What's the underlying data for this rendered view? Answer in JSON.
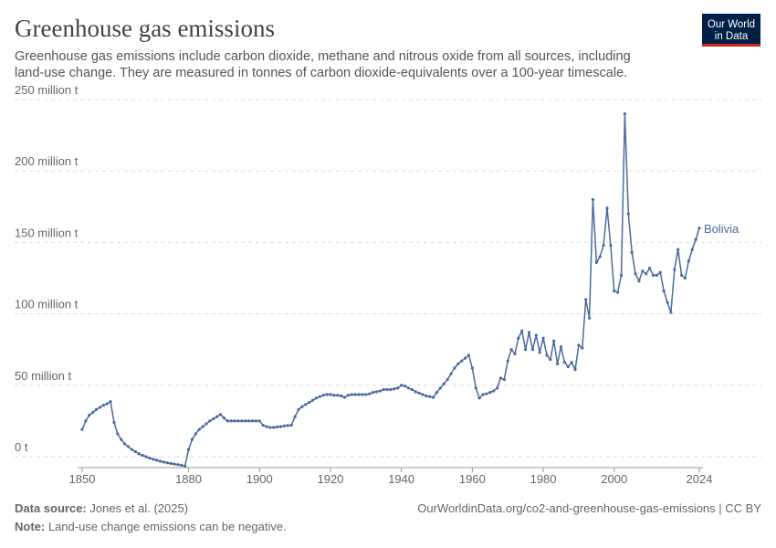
{
  "logo": [
    "Our World",
    "in Data"
  ],
  "chart_data": {
    "type": "line",
    "title": "Greenhouse gas emissions",
    "subtitle": [
      "Greenhouse gas emissions include carbon dioxide, methane and nitrous oxide from all sources, including",
      "land-use change. They are measured in tonnes of carbon dioxide-equivalents over a 100-year timescale."
    ],
    "x": [
      1850,
      1851,
      1852,
      1853,
      1854,
      1855,
      1856,
      1857,
      1858,
      1859,
      1860,
      1861,
      1862,
      1863,
      1864,
      1865,
      1866,
      1867,
      1868,
      1869,
      1870,
      1871,
      1872,
      1873,
      1874,
      1875,
      1876,
      1877,
      1878,
      1879,
      1880,
      1881,
      1882,
      1883,
      1884,
      1885,
      1886,
      1887,
      1888,
      1889,
      1890,
      1891,
      1892,
      1893,
      1894,
      1895,
      1896,
      1897,
      1898,
      1899,
      1900,
      1901,
      1902,
      1903,
      1904,
      1905,
      1906,
      1907,
      1908,
      1909,
      1910,
      1911,
      1912,
      1913,
      1914,
      1915,
      1916,
      1917,
      1918,
      1919,
      1920,
      1921,
      1922,
      1923,
      1924,
      1925,
      1926,
      1927,
      1928,
      1929,
      1930,
      1931,
      1932,
      1933,
      1934,
      1935,
      1936,
      1937,
      1938,
      1939,
      1940,
      1941,
      1942,
      1943,
      1944,
      1945,
      1946,
      1947,
      1948,
      1949,
      1950,
      1951,
      1952,
      1953,
      1954,
      1955,
      1956,
      1957,
      1958,
      1959,
      1960,
      1961,
      1962,
      1963,
      1964,
      1965,
      1966,
      1967,
      1968,
      1969,
      1970,
      1971,
      1972,
      1973,
      1974,
      1975,
      1976,
      1977,
      1978,
      1979,
      1980,
      1981,
      1982,
      1983,
      1984,
      1985,
      1986,
      1987,
      1988,
      1989,
      1990,
      1991,
      1992,
      1993,
      1994,
      1995,
      1996,
      1997,
      1998,
      1999,
      2000,
      2001,
      2002,
      2003,
      2004,
      2005,
      2006,
      2007,
      2008,
      2009,
      2010,
      2011,
      2012,
      2013,
      2014,
      2015,
      2016,
      2017,
      2018,
      2019,
      2020,
      2021,
      2022,
      2023,
      2024
    ],
    "series": [
      {
        "name": "Bolivia",
        "color": "#4c6a9c",
        "values": [
          19,
          25,
          29,
          31,
          33,
          34.5,
          36,
          37,
          38.5,
          24,
          16,
          12,
          9,
          7,
          5,
          3.5,
          2,
          1,
          0,
          -1,
          -1.8,
          -2.5,
          -3.2,
          -3.8,
          -4.3,
          -4.8,
          -5.2,
          -5.6,
          -6,
          -6.5,
          5,
          12,
          16,
          19,
          21,
          23,
          25,
          26.5,
          28,
          29.5,
          27,
          25,
          25,
          25,
          25,
          25,
          25,
          25,
          25,
          25,
          25,
          22,
          21,
          20.5,
          20.5,
          20.8,
          21,
          21.5,
          21.8,
          22,
          28,
          33,
          35,
          36.5,
          38,
          39.5,
          41,
          42,
          43,
          43.5,
          43.5,
          43,
          43,
          42.5,
          41.5,
          43,
          43.5,
          43.5,
          43.5,
          43.5,
          43.5,
          44,
          45,
          45.5,
          46,
          47,
          47,
          47,
          47.5,
          48,
          50,
          49.5,
          48,
          47,
          45.5,
          44.5,
          43.5,
          42.5,
          42,
          41.5,
          45,
          48,
          51,
          54,
          58,
          62,
          65,
          67,
          69,
          71,
          62,
          48,
          41,
          43.5,
          44,
          45,
          46,
          48,
          55,
          54,
          67,
          75,
          72,
          83,
          88,
          75,
          87,
          75,
          85,
          73,
          83,
          71,
          68,
          81,
          65,
          77,
          66,
          63,
          66,
          61,
          78,
          76,
          110,
          97,
          180,
          136,
          140,
          148,
          174,
          148,
          116,
          115,
          127,
          240,
          170,
          143,
          128,
          123,
          130,
          128,
          132,
          127,
          127,
          129,
          116,
          108,
          101,
          131,
          145,
          127,
          125,
          137,
          145,
          152,
          160
        ]
      }
    ],
    "xlim": [
      1850,
      2024
    ],
    "xticks": [
      1850,
      1880,
      1900,
      1920,
      1940,
      1960,
      1980,
      2000,
      2024
    ],
    "ylim": [
      0,
      250
    ],
    "yticks": [
      {
        "value": 0,
        "label": "0 t"
      },
      {
        "value": 50,
        "label": "50 million t"
      },
      {
        "value": 100,
        "label": "100 million t"
      },
      {
        "value": 150,
        "label": "150 million t"
      },
      {
        "value": 200,
        "label": "200 million t"
      },
      {
        "value": 250,
        "label": "250 million t"
      }
    ],
    "grid": true,
    "source_label": "Data source:",
    "source": "Jones et al. (2025)",
    "url": "OurWorldinData.org/co2-and-greenhouse-gas-emissions | CC BY",
    "note_label": "Note:",
    "note": "Land-use change emissions can be negative."
  }
}
